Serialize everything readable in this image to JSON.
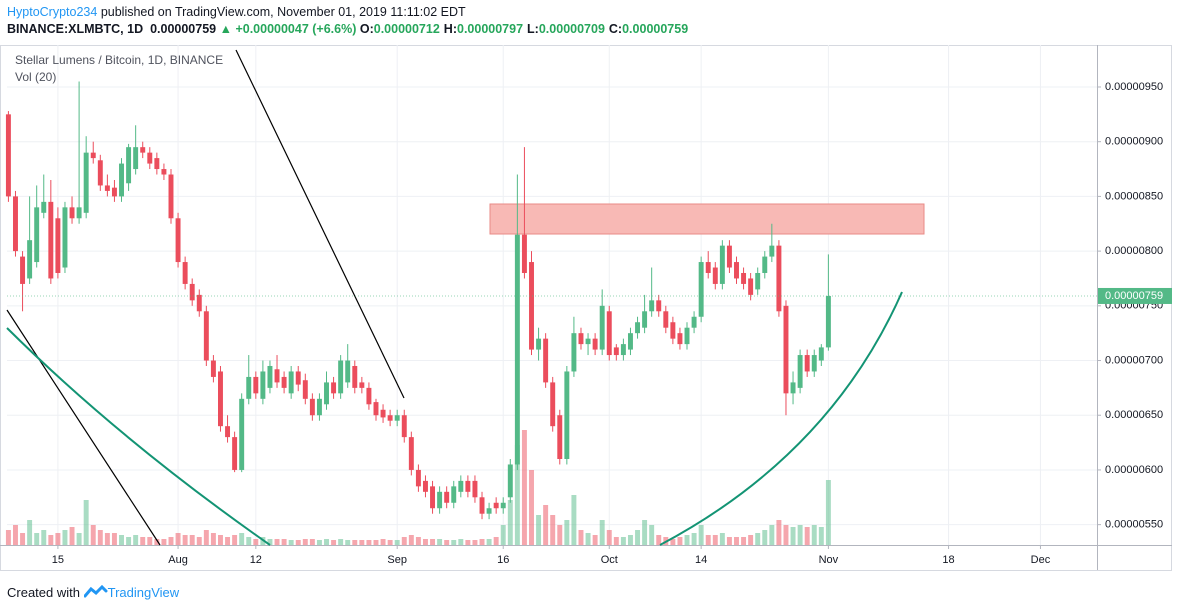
{
  "header": {
    "author": "HyptoCrypto234",
    "published": "published on TradingView.com, November 01, 2019 11:11:02 EDT",
    "symbol": "BINANCE:XLMBTC, 1D",
    "last": "0.00000759",
    "change": "▲ +0.00000047 (+6.6%)",
    "ohlc": [
      {
        "key": "O:",
        "value": "0.00000712"
      },
      {
        "key": "H:",
        "value": "0.00000797"
      },
      {
        "key": "L:",
        "value": "0.00000709"
      },
      {
        "key": "C:",
        "value": "0.00000759"
      }
    ]
  },
  "chart_data": {
    "type": "candlestick",
    "title": "Stellar Lumens / Bitcoin, 1D, BINANCE",
    "volume_label": "Vol (20)",
    "up_color": "#53b987",
    "down_color": "#eb4d5c",
    "grid": true,
    "ylim": [
      5.314e-06,
      9.838e-06
    ],
    "xlim": [
      -0.2,
      154
    ],
    "yticks": [
      {
        "value": 5.5e-06,
        "label": "0.00000550"
      },
      {
        "value": 6e-06,
        "label": "0.00000600"
      },
      {
        "value": 6.5e-06,
        "label": "0.00000650"
      },
      {
        "value": 7e-06,
        "label": "0.00000700"
      },
      {
        "value": 7.5e-06,
        "label": "0.00000750"
      },
      {
        "value": 8e-06,
        "label": "0.00000800"
      },
      {
        "value": 8.5e-06,
        "label": "0.00000850"
      },
      {
        "value": 9e-06,
        "label": "0.00000900"
      },
      {
        "value": 9.5e-06,
        "label": "0.00000950"
      }
    ],
    "xticks": [
      {
        "value": 7,
        "label": "15"
      },
      {
        "value": 24,
        "label": "Aug"
      },
      {
        "value": 35,
        "label": "12"
      },
      {
        "value": 55,
        "label": "Sep"
      },
      {
        "value": 70,
        "label": "16"
      },
      {
        "value": 85,
        "label": "Oct"
      },
      {
        "value": 98,
        "label": "14"
      },
      {
        "value": 116,
        "label": "Nov"
      },
      {
        "value": 133,
        "label": "18"
      },
      {
        "value": 146,
        "label": "Dec"
      }
    ],
    "last_price_label": "0.00000759",
    "candles": [
      [
        9.25e-06,
        9.28e-06,
        8.45e-06,
        8.5e-06
      ],
      [
        8.5e-06,
        8.55e-06,
        7.95e-06,
        8e-06
      ],
      [
        7.95e-06,
        8e-06,
        7.45e-06,
        7.7e-06
      ],
      [
        7.75e-06,
        8.5e-06,
        7.7e-06,
        8.1e-06
      ],
      [
        7.9e-06,
        8.6e-06,
        7.85e-06,
        8.4e-06
      ],
      [
        8.35e-06,
        8.7e-06,
        8.3e-06,
        8.45e-06
      ],
      [
        8.45e-06,
        8.65e-06,
        7.7e-06,
        7.75e-06
      ],
      [
        8.3e-06,
        8.4e-06,
        7.75e-06,
        7.8e-06
      ],
      [
        7.85e-06,
        8.45e-06,
        7.8e-06,
        8.4e-06
      ],
      [
        8.4e-06,
        8.5e-06,
        8.25e-06,
        8.3e-06
      ],
      [
        8.3e-06,
        9.55e-06,
        8.25e-06,
        8.4e-06
      ],
      [
        8.35e-06,
        9.05e-06,
        8.3e-06,
        8.9e-06
      ],
      [
        8.9e-06,
        9e-06,
        8.8e-06,
        8.85e-06
      ],
      [
        8.83e-06,
        8.88e-06,
        8.55e-06,
        8.6e-06
      ],
      [
        8.6e-06,
        8.7e-06,
        8.5e-06,
        8.55e-06
      ],
      [
        8.58e-06,
        8.65e-06,
        8.45e-06,
        8.5e-06
      ],
      [
        8.5e-06,
        8.85e-06,
        8.45e-06,
        8.8e-06
      ],
      [
        8.62e-06,
        8.98e-06,
        8.55e-06,
        8.95e-06
      ],
      [
        8.75e-06,
        9.15e-06,
        8.7e-06,
        8.95e-06
      ],
      [
        8.95e-06,
        9e-06,
        8.85e-06,
        8.9e-06
      ],
      [
        8.9e-06,
        8.95e-06,
        8.75e-06,
        8.8e-06
      ],
      [
        8.85e-06,
        8.9e-06,
        8.7e-06,
        8.75e-06
      ],
      [
        8.75e-06,
        8.8e-06,
        8.65e-06,
        8.7e-06
      ],
      [
        8.7e-06,
        8.75e-06,
        8.25e-06,
        8.3e-06
      ],
      [
        8.3e-06,
        8.35e-06,
        7.85e-06,
        7.9e-06
      ],
      [
        7.9e-06,
        7.95e-06,
        7.65e-06,
        7.7e-06
      ],
      [
        7.7e-06,
        7.75e-06,
        7.5e-06,
        7.55e-06
      ],
      [
        7.6e-06,
        7.65e-06,
        7.4e-06,
        7.45e-06
      ],
      [
        7.45e-06,
        7.5e-06,
        6.95e-06,
        7e-06
      ],
      [
        7e-06,
        7.05e-06,
        6.8e-06,
        6.85e-06
      ],
      [
        6.9e-06,
        6.95e-06,
        6.35e-06,
        6.4e-06
      ],
      [
        6.4e-06,
        6.5e-06,
        6.25e-06,
        6.3e-06
      ],
      [
        6.3e-06,
        6.35e-06,
        5.98e-06,
        6e-06
      ],
      [
        6e-06,
        6.7e-06,
        5.98e-06,
        6.65e-06
      ],
      [
        6.65e-06,
        7.05e-06,
        6.6e-06,
        6.85e-06
      ],
      [
        6.85e-06,
        6.9e-06,
        6.65e-06,
        6.7e-06
      ],
      [
        6.65e-06,
        7e-06,
        6.6e-06,
        6.9e-06
      ],
      [
        6.75e-06,
        7e-06,
        6.7e-06,
        6.95e-06
      ],
      [
        6.92e-06,
        7.05e-06,
        6.75e-06,
        6.8e-06
      ],
      [
        6.85e-06,
        6.9e-06,
        6.7e-06,
        6.75e-06
      ],
      [
        6.7e-06,
        6.95e-06,
        6.65e-06,
        6.9e-06
      ],
      [
        6.9e-06,
        6.95e-06,
        6.72e-06,
        6.78e-06
      ],
      [
        6.82e-06,
        6.88e-06,
        6.6e-06,
        6.65e-06
      ],
      [
        6.65e-06,
        6.7e-06,
        6.45e-06,
        6.5e-06
      ],
      [
        6.5e-06,
        6.7e-06,
        6.45e-06,
        6.65e-06
      ],
      [
        6.6e-06,
        6.9e-06,
        6.55e-06,
        6.8e-06
      ],
      [
        6.8e-06,
        6.85e-06,
        6.65e-06,
        6.7e-06
      ],
      [
        6.7e-06,
        7.05e-06,
        6.65e-06,
        7e-06
      ],
      [
        6.8e-06,
        7.15e-06,
        6.75e-06,
        7e-06
      ],
      [
        6.95e-06,
        7e-06,
        6.7e-06,
        6.75e-06
      ],
      [
        6.8e-06,
        6.85e-06,
        6.7e-06,
        6.75e-06
      ],
      [
        6.75e-06,
        6.8e-06,
        6.55e-06,
        6.6e-06
      ],
      [
        6.62e-06,
        6.65e-06,
        6.45e-06,
        6.5e-06
      ],
      [
        6.55e-06,
        6.6e-06,
        6.43e-06,
        6.48e-06
      ],
      [
        6.5e-06,
        6.55e-06,
        6.4e-06,
        6.45e-06
      ],
      [
        6.45e-06,
        6.55e-06,
        6.4e-06,
        6.5e-06
      ],
      [
        6.5e-06,
        6.55e-06,
        6.25e-06,
        6.3e-06
      ],
      [
        6.3e-06,
        6.35e-06,
        5.95e-06,
        6e-06
      ],
      [
        6e-06,
        6.05e-06,
        5.8e-06,
        5.85e-06
      ],
      [
        5.9e-06,
        5.95e-06,
        5.75e-06,
        5.8e-06
      ],
      [
        5.85e-06,
        5.9e-06,
        5.6e-06,
        5.65e-06
      ],
      [
        5.65e-06,
        5.85e-06,
        5.6e-06,
        5.8e-06
      ],
      [
        5.8e-06,
        5.85e-06,
        5.65e-06,
        5.7e-06
      ],
      [
        5.7e-06,
        5.9e-06,
        5.65e-06,
        5.85e-06
      ],
      [
        5.8e-06,
        5.95e-06,
        5.75e-06,
        5.9e-06
      ],
      [
        5.9e-06,
        5.95e-06,
        5.75e-06,
        5.8e-06
      ],
      [
        5.9e-06,
        5.95e-06,
        5.7e-06,
        5.75e-06
      ],
      [
        5.75e-06,
        5.8e-06,
        5.55e-06,
        5.6e-06
      ],
      [
        5.6e-06,
        5.7e-06,
        5.55e-06,
        5.65e-06
      ],
      [
        5.7e-06,
        5.75e-06,
        5.6e-06,
        5.65e-06
      ],
      [
        5.65e-06,
        5.75e-06,
        5.6e-06,
        5.7e-06
      ],
      [
        5.75e-06,
        6.1e-06,
        5.7e-06,
        6.05e-06
      ],
      [
        6.05e-06,
        8.7e-06,
        6e-06,
        8.15e-06
      ],
      [
        8.15e-06,
        8.95e-06,
        7.75e-06,
        7.8e-06
      ],
      [
        7.9e-06,
        8e-06,
        7.05e-06,
        7.1e-06
      ],
      [
        7.1e-06,
        7.3e-06,
        7e-06,
        7.2e-06
      ],
      [
        7.2e-06,
        7.25e-06,
        6.75e-06,
        6.8e-06
      ],
      [
        6.8e-06,
        6.85e-06,
        6.35e-06,
        6.4e-06
      ],
      [
        6.5e-06,
        6.55e-06,
        6.05e-06,
        6.1e-06
      ],
      [
        6.1e-06,
        6.95e-06,
        6.05e-06,
        6.9e-06
      ],
      [
        6.9e-06,
        7.4e-06,
        6.85e-06,
        7.25e-06
      ],
      [
        7.25e-06,
        7.3e-06,
        7.1e-06,
        7.15e-06
      ],
      [
        7.15e-06,
        7.25e-06,
        7.05e-06,
        7.2e-06
      ],
      [
        7.2e-06,
        7.25e-06,
        7.05e-06,
        7.1e-06
      ],
      [
        7.1e-06,
        7.65e-06,
        7.05e-06,
        7.5e-06
      ],
      [
        7.45e-06,
        7.5e-06,
        7e-06,
        7.05e-06
      ],
      [
        7.12e-06,
        7.15e-06,
        7e-06,
        7.05e-06
      ],
      [
        7.05e-06,
        7.2e-06,
        7e-06,
        7.15e-06
      ],
      [
        7.1e-06,
        7.3e-06,
        7.05e-06,
        7.25e-06
      ],
      [
        7.25e-06,
        7.4e-06,
        7.2e-06,
        7.35e-06
      ],
      [
        7.3e-06,
        7.6e-06,
        7.25e-06,
        7.45e-06
      ],
      [
        7.45e-06,
        7.85e-06,
        7.4e-06,
        7.55e-06
      ],
      [
        7.55e-06,
        7.6e-06,
        7.4e-06,
        7.45e-06
      ],
      [
        7.45e-06,
        7.5e-06,
        7.25e-06,
        7.3e-06
      ],
      [
        7.35e-06,
        7.4e-06,
        7.15e-06,
        7.2e-06
      ],
      [
        7.25e-06,
        7.3e-06,
        7.1e-06,
        7.15e-06
      ],
      [
        7.15e-06,
        7.35e-06,
        7.1e-06,
        7.3e-06
      ],
      [
        7.3e-06,
        7.45e-06,
        7.25e-06,
        7.4e-06
      ],
      [
        7.4e-06,
        7.95e-06,
        7.35e-06,
        7.9e-06
      ],
      [
        7.9e-06,
        8e-06,
        7.75e-06,
        7.8e-06
      ],
      [
        7.85e-06,
        7.9e-06,
        7.65e-06,
        7.7e-06
      ],
      [
        7.7e-06,
        8.1e-06,
        7.65e-06,
        8.05e-06
      ],
      [
        8.05e-06,
        8.1e-06,
        7.8e-06,
        7.85e-06
      ],
      [
        7.9e-06,
        7.95e-06,
        7.7e-06,
        7.75e-06
      ],
      [
        7.8e-06,
        7.85e-06,
        7.65e-06,
        7.7e-06
      ],
      [
        7.75e-06,
        7.8e-06,
        7.55e-06,
        7.6e-06
      ],
      [
        7.65e-06,
        7.85e-06,
        7.6e-06,
        7.8e-06
      ],
      [
        7.8e-06,
        8e-06,
        7.75e-06,
        7.95e-06
      ],
      [
        7.95e-06,
        8.25e-06,
        7.9e-06,
        8.05e-06
      ],
      [
        8.05e-06,
        8.1e-06,
        7.4e-06,
        7.45e-06
      ],
      [
        7.5e-06,
        7.55e-06,
        6.5e-06,
        6.7e-06
      ],
      [
        6.7e-06,
        6.9e-06,
        6.6e-06,
        6.8e-06
      ],
      [
        6.75e-06,
        7.1e-06,
        6.7e-06,
        7.05e-06
      ],
      [
        7.05e-06,
        7.1e-06,
        6.85e-06,
        6.9e-06
      ],
      [
        6.9e-06,
        7.1e-06,
        6.85e-06,
        7.05e-06
      ],
      [
        7e-06,
        7.15e-06,
        6.95e-06,
        7.12e-06
      ],
      [
        7.12e-06,
        7.97e-06,
        7.09e-06,
        7.59e-06
      ]
    ],
    "volume": [
      15,
      20,
      12,
      25,
      12,
      15,
      10,
      12,
      15,
      18,
      12,
      45,
      20,
      15,
      12,
      12,
      10,
      8,
      10,
      8,
      8,
      6,
      6,
      8,
      12,
      10,
      10,
      8,
      15,
      12,
      10,
      8,
      10,
      12,
      8,
      6,
      8,
      6,
      6,
      6,
      5,
      5,
      6,
      6,
      5,
      6,
      5,
      6,
      5,
      5,
      5,
      5,
      5,
      6,
      5,
      5,
      8,
      10,
      8,
      6,
      6,
      6,
      5,
      5,
      6,
      5,
      5,
      6,
      6,
      8,
      20,
      45,
      100,
      115,
      75,
      30,
      40,
      30,
      20,
      25,
      50,
      15,
      12,
      10,
      25,
      15,
      8,
      8,
      10,
      15,
      25,
      20,
      10,
      8,
      6,
      8,
      10,
      12,
      20,
      10,
      10,
      12,
      8,
      8,
      8,
      10,
      12,
      15,
      20,
      25,
      20,
      18,
      20,
      18,
      20,
      18,
      65
    ]
  },
  "footer": {
    "created": "Created with",
    "brand": "TradingView"
  }
}
